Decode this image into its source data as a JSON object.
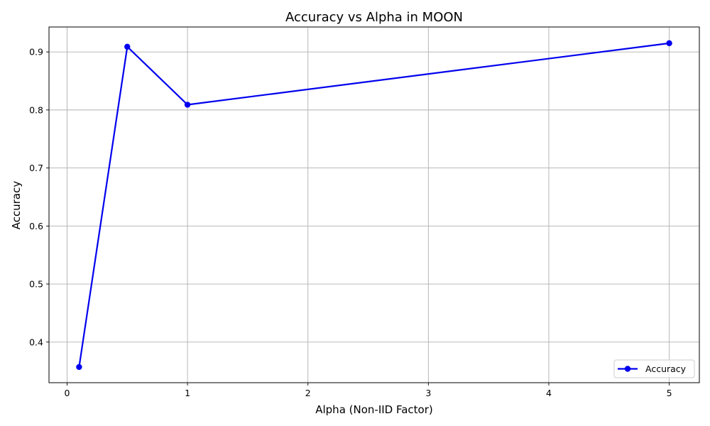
{
  "chart_data": {
    "type": "line",
    "title": "Accuracy vs Alpha in MOON",
    "xlabel": "Alpha (Non-IID Factor)",
    "ylabel": "Accuracy",
    "xlim": [
      -0.15,
      5.25
    ],
    "ylim": [
      0.33,
      0.943
    ],
    "xticks": [
      0,
      1,
      2,
      3,
      4,
      5
    ],
    "xtick_labels": [
      "0",
      "1",
      "2",
      "3",
      "4",
      "5"
    ],
    "yticks": [
      0.4,
      0.5,
      0.6,
      0.7,
      0.8,
      0.9
    ],
    "ytick_labels": [
      "0.4",
      "0.5",
      "0.6",
      "0.7",
      "0.8",
      "0.9"
    ],
    "grid": true,
    "legend_position": "lower-right",
    "series": [
      {
        "name": "Accuracy",
        "color": "#0000ee",
        "marker": "circle",
        "x": [
          0.1,
          0.5,
          1,
          5
        ],
        "y": [
          0.357,
          0.909,
          0.809,
          0.915
        ]
      }
    ]
  }
}
